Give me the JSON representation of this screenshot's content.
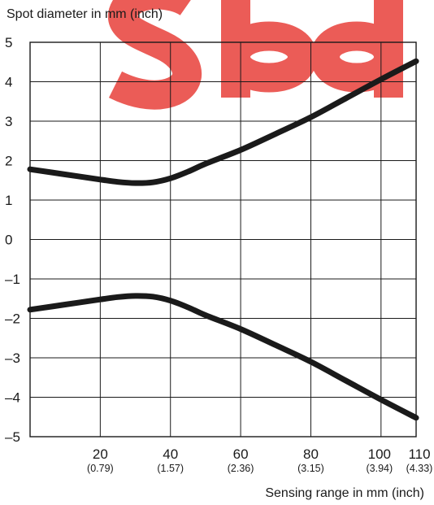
{
  "chart_data": {
    "type": "line",
    "ylabel": "Spot diameter in mm (inch)",
    "xlabel": "Sensing range in mm (inch)",
    "xlim": [
      0,
      110
    ],
    "ylim": [
      -5,
      5
    ],
    "grid": true,
    "x_ticks": [
      {
        "value": 20,
        "label": "20",
        "sublabel": "(0.79)"
      },
      {
        "value": 40,
        "label": "40",
        "sublabel": "(1.57)"
      },
      {
        "value": 60,
        "label": "60",
        "sublabel": "(2.36)"
      },
      {
        "value": 80,
        "label": "80",
        "sublabel": "(3.15)"
      },
      {
        "value": 100,
        "label": "100",
        "sublabel": "(3.94)"
      },
      {
        "value": 110,
        "label": "110",
        "sublabel": "(4.33)"
      }
    ],
    "y_ticks": [
      {
        "value": 5,
        "label": "5"
      },
      {
        "value": 4,
        "label": "4"
      },
      {
        "value": 3,
        "label": "3"
      },
      {
        "value": 2,
        "label": "2"
      },
      {
        "value": 1,
        "label": "1"
      },
      {
        "value": 0,
        "label": "0"
      },
      {
        "value": -1,
        "label": "–1"
      },
      {
        "value": -2,
        "label": "–2"
      },
      {
        "value": -3,
        "label": "–3"
      },
      {
        "value": -4,
        "label": "–4"
      },
      {
        "value": -5,
        "label": "–5"
      }
    ],
    "series": [
      {
        "x": [
          0,
          10,
          20,
          25,
          30,
          35,
          40,
          45,
          50,
          60,
          70,
          80,
          90,
          100,
          110
        ],
        "values": [
          1.78,
          1.65,
          1.52,
          1.46,
          1.43,
          1.45,
          1.55,
          1.72,
          1.92,
          2.27,
          2.68,
          3.1,
          3.58,
          4.06,
          4.52
        ]
      },
      {
        "x": [
          0,
          10,
          20,
          25,
          30,
          35,
          40,
          45,
          50,
          60,
          70,
          80,
          90,
          100,
          110
        ],
        "values": [
          -1.78,
          -1.65,
          -1.52,
          -1.46,
          -1.43,
          -1.45,
          -1.55,
          -1.72,
          -1.92,
          -2.27,
          -2.68,
          -3.1,
          -3.58,
          -4.06,
          -4.52
        ]
      }
    ],
    "line_color": "#1a1a1a",
    "grid_color": "#1a1a1a",
    "watermark_color": "#e8403a"
  }
}
